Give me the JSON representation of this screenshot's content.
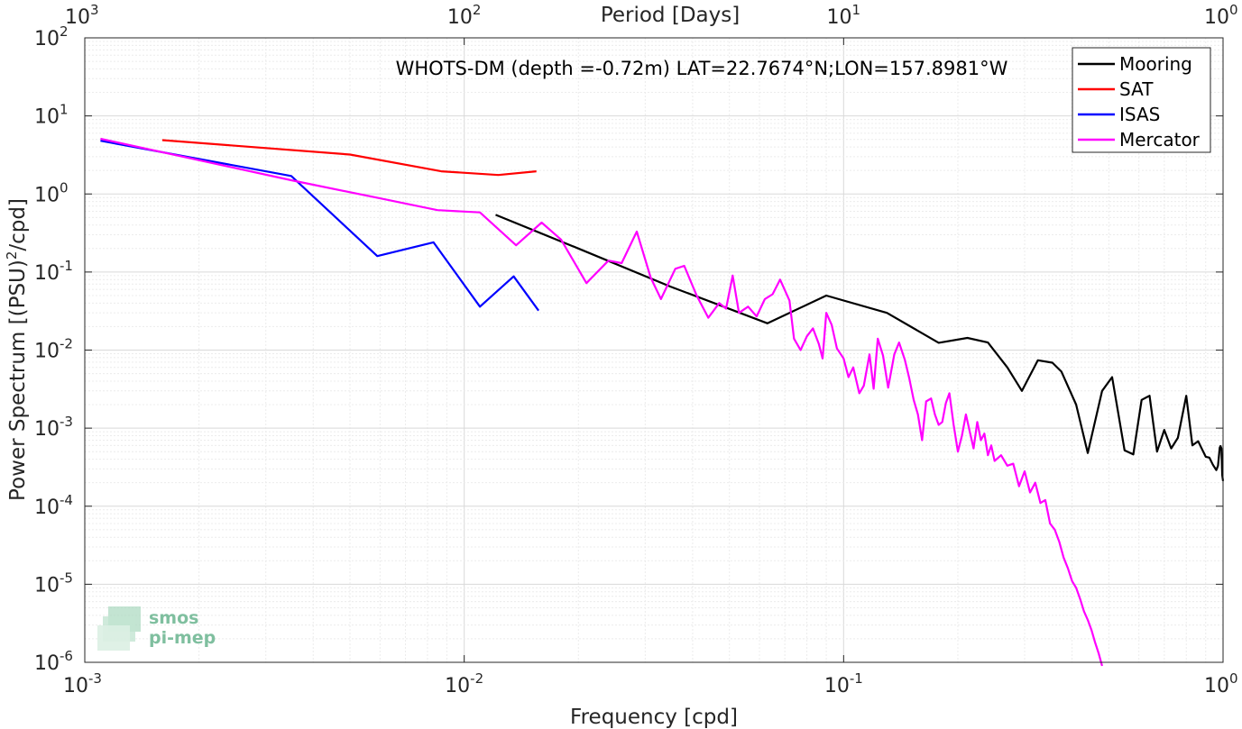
{
  "chart_data": {
    "type": "line",
    "title": "WHOTS-DM (depth =-0.72m) LAT=22.7674°N;LON=157.8981°W",
    "xlabel": "Frequency [cpd]",
    "ylabel": "Power Spectrum [(PSU)",
    "ylabel_sup": "2",
    "ylabel_tail": "/cpd]",
    "x2label": "Period [Days]",
    "xscale": "log",
    "yscale": "log",
    "xlim": [
      0.001,
      1
    ],
    "ylim": [
      1e-06,
      100
    ],
    "grid": true,
    "legend_position": "top-right",
    "x_ticks": [
      {
        "value": 0.001,
        "base": "10",
        "exp": "-3"
      },
      {
        "value": 0.01,
        "base": "10",
        "exp": "-2"
      },
      {
        "value": 0.1,
        "base": "10",
        "exp": "-1"
      },
      {
        "value": 1,
        "base": "10",
        "exp": "0"
      }
    ],
    "x2_ticks": [
      {
        "value": 0.001,
        "base": "10",
        "exp": "3"
      },
      {
        "value": 0.01,
        "base": "10",
        "exp": "2"
      },
      {
        "value": 0.1,
        "base": "10",
        "exp": "1"
      },
      {
        "value": 1,
        "base": "10",
        "exp": "0"
      }
    ],
    "y_ticks": [
      {
        "value": 100,
        "base": "10",
        "exp": "2"
      },
      {
        "value": 10,
        "base": "10",
        "exp": "1"
      },
      {
        "value": 1,
        "base": "10",
        "exp": "0"
      },
      {
        "value": 0.1,
        "base": "10",
        "exp": "-1"
      },
      {
        "value": 0.01,
        "base": "10",
        "exp": "-2"
      },
      {
        "value": 0.001,
        "base": "10",
        "exp": "-3"
      },
      {
        "value": 0.0001,
        "base": "10",
        "exp": "-4"
      },
      {
        "value": 1e-05,
        "base": "10",
        "exp": "-5"
      },
      {
        "value": 1e-06,
        "base": "10",
        "exp": "-6"
      }
    ],
    "series": [
      {
        "name": "Mooring",
        "color": "#000000",
        "points": [
          [
            0.0121,
            0.54
          ],
          [
            0.02,
            0.2
          ],
          [
            0.035,
            0.065
          ],
          [
            0.063,
            0.022
          ],
          [
            0.09,
            0.05
          ],
          [
            0.13,
            0.03
          ],
          [
            0.178,
            0.0124
          ],
          [
            0.212,
            0.0143
          ],
          [
            0.24,
            0.0125
          ],
          [
            0.27,
            0.006
          ],
          [
            0.295,
            0.003
          ],
          [
            0.325,
            0.0074
          ],
          [
            0.355,
            0.0069
          ],
          [
            0.375,
            0.0053
          ],
          [
            0.41,
            0.002
          ],
          [
            0.44,
            0.00048
          ],
          [
            0.48,
            0.003
          ],
          [
            0.51,
            0.0045
          ],
          [
            0.55,
            0.00052
          ],
          [
            0.58,
            0.00046
          ],
          [
            0.61,
            0.0023
          ],
          [
            0.64,
            0.0026
          ],
          [
            0.67,
            0.0005
          ],
          [
            0.7,
            0.00095
          ],
          [
            0.73,
            0.00055
          ],
          [
            0.76,
            0.00075
          ],
          [
            0.8,
            0.0026
          ],
          [
            0.83,
            0.0006
          ],
          [
            0.86,
            0.00068
          ],
          [
            0.88,
            0.00054
          ],
          [
            0.9,
            0.00043
          ],
          [
            0.92,
            0.00042
          ],
          [
            0.94,
            0.00034
          ],
          [
            0.96,
            0.00029
          ],
          [
            0.97,
            0.00033
          ],
          [
            0.98,
            0.00056
          ],
          [
            0.985,
            0.00059
          ],
          [
            0.99,
            0.00055
          ],
          [
            0.995,
            0.00025
          ],
          [
            1.0,
            0.00021
          ]
        ]
      },
      {
        "name": "SAT",
        "color": "#ff0000",
        "points": [
          [
            0.0016,
            4.9
          ],
          [
            0.005,
            3.2
          ],
          [
            0.0087,
            1.95
          ],
          [
            0.0123,
            1.75
          ],
          [
            0.0155,
            1.95
          ]
        ]
      },
      {
        "name": "ISAS",
        "color": "#0000ff",
        "points": [
          [
            0.0011,
            4.8
          ],
          [
            0.0035,
            1.7
          ],
          [
            0.0059,
            0.16
          ],
          [
            0.0083,
            0.24
          ],
          [
            0.011,
            0.036
          ],
          [
            0.0135,
            0.088
          ],
          [
            0.0157,
            0.032
          ]
        ]
      },
      {
        "name": "Mercator",
        "color": "#ff00ff",
        "points": [
          [
            0.0011,
            5.1
          ],
          [
            0.0035,
            1.5
          ],
          [
            0.006,
            0.88
          ],
          [
            0.0085,
            0.62
          ],
          [
            0.011,
            0.58
          ],
          [
            0.0137,
            0.22
          ],
          [
            0.016,
            0.43
          ],
          [
            0.018,
            0.26
          ],
          [
            0.021,
            0.072
          ],
          [
            0.024,
            0.14
          ],
          [
            0.026,
            0.13
          ],
          [
            0.0285,
            0.33
          ],
          [
            0.031,
            0.085
          ],
          [
            0.033,
            0.045
          ],
          [
            0.036,
            0.11
          ],
          [
            0.038,
            0.12
          ],
          [
            0.041,
            0.05
          ],
          [
            0.044,
            0.026
          ],
          [
            0.047,
            0.04
          ],
          [
            0.049,
            0.034
          ],
          [
            0.051,
            0.09
          ],
          [
            0.053,
            0.03
          ],
          [
            0.056,
            0.036
          ],
          [
            0.059,
            0.027
          ],
          [
            0.062,
            0.045
          ],
          [
            0.065,
            0.052
          ],
          [
            0.068,
            0.08
          ],
          [
            0.072,
            0.043
          ],
          [
            0.074,
            0.014
          ],
          [
            0.077,
            0.01
          ],
          [
            0.08,
            0.015
          ],
          [
            0.083,
            0.019
          ],
          [
            0.086,
            0.012
          ],
          [
            0.088,
            0.0078
          ],
          [
            0.09,
            0.03
          ],
          [
            0.093,
            0.021
          ],
          [
            0.096,
            0.0105
          ],
          [
            0.1,
            0.0078
          ],
          [
            0.103,
            0.0045
          ],
          [
            0.106,
            0.006
          ],
          [
            0.11,
            0.0028
          ],
          [
            0.113,
            0.0035
          ],
          [
            0.117,
            0.0088
          ],
          [
            0.12,
            0.0032
          ],
          [
            0.123,
            0.014
          ],
          [
            0.127,
            0.0085
          ],
          [
            0.131,
            0.0033
          ],
          [
            0.136,
            0.0088
          ],
          [
            0.14,
            0.0125
          ],
          [
            0.145,
            0.0075
          ],
          [
            0.149,
            0.0043
          ],
          [
            0.153,
            0.0023
          ],
          [
            0.157,
            0.0015
          ],
          [
            0.161,
            0.0007
          ],
          [
            0.165,
            0.0022
          ],
          [
            0.17,
            0.0024
          ],
          [
            0.174,
            0.0015
          ],
          [
            0.178,
            0.0011
          ],
          [
            0.182,
            0.0012
          ],
          [
            0.186,
            0.0021
          ],
          [
            0.19,
            0.0028
          ],
          [
            0.195,
            0.0011
          ],
          [
            0.2,
            0.0005
          ],
          [
            0.205,
            0.0008
          ],
          [
            0.21,
            0.0015
          ],
          [
            0.215,
            0.0009
          ],
          [
            0.22,
            0.00055
          ],
          [
            0.225,
            0.0012
          ],
          [
            0.23,
            0.0007
          ],
          [
            0.235,
            0.00085
          ],
          [
            0.24,
            0.00045
          ],
          [
            0.245,
            0.0006
          ],
          [
            0.25,
            0.00038
          ],
          [
            0.26,
            0.00045
          ],
          [
            0.27,
            0.00033
          ],
          [
            0.28,
            0.00035
          ],
          [
            0.29,
            0.00018
          ],
          [
            0.3,
            0.00028
          ],
          [
            0.31,
            0.00015
          ],
          [
            0.32,
            0.0002
          ],
          [
            0.33,
            0.00011
          ],
          [
            0.34,
            0.00012
          ],
          [
            0.35,
            6e-05
          ],
          [
            0.36,
            5e-05
          ],
          [
            0.37,
            3.5e-05
          ],
          [
            0.38,
            2.2e-05
          ],
          [
            0.39,
            1.6e-05
          ],
          [
            0.4,
            1.1e-05
          ],
          [
            0.41,
            9e-06
          ],
          [
            0.42,
            6.5e-06
          ],
          [
            0.43,
            4.5e-06
          ],
          [
            0.44,
            3.5e-06
          ],
          [
            0.45,
            2.6e-06
          ],
          [
            0.46,
            1.8e-06
          ],
          [
            0.47,
            1.3e-06
          ],
          [
            0.48,
            9e-07
          ]
        ]
      }
    ]
  },
  "logo": {
    "line1": "smos",
    "line2": "pi-mep"
  },
  "colors": {
    "axis": "#262626",
    "grid": "#d9d9d9",
    "grid_minor": "#ececec",
    "logo": "#7fbf9f"
  }
}
